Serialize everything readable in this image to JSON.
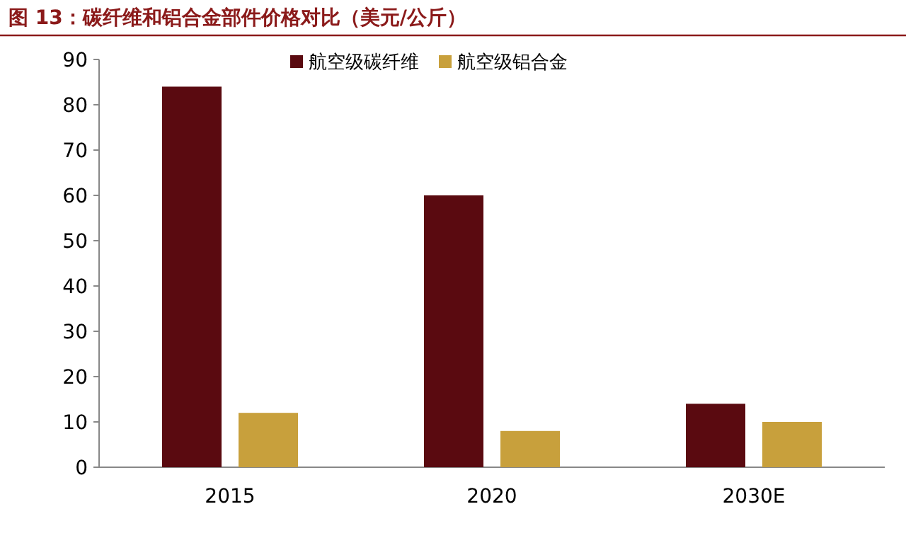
{
  "chart_data": {
    "type": "bar",
    "title": "图 13：碳纤维和铝合金部件价格对比（美元/公斤）",
    "categories": [
      "2015",
      "2020",
      "2030E"
    ],
    "series": [
      {
        "name": "航空级碳纤维",
        "color": "#5a0a10",
        "values": [
          84,
          60,
          14
        ]
      },
      {
        "name": "航空级铝合金",
        "color": "#c8a03c",
        "values": [
          12,
          8,
          10
        ]
      }
    ],
    "ylim": [
      0,
      90
    ],
    "yticks": [
      0,
      10,
      20,
      30,
      40,
      50,
      60,
      70,
      80,
      90
    ],
    "grid": false,
    "legend": "top"
  }
}
